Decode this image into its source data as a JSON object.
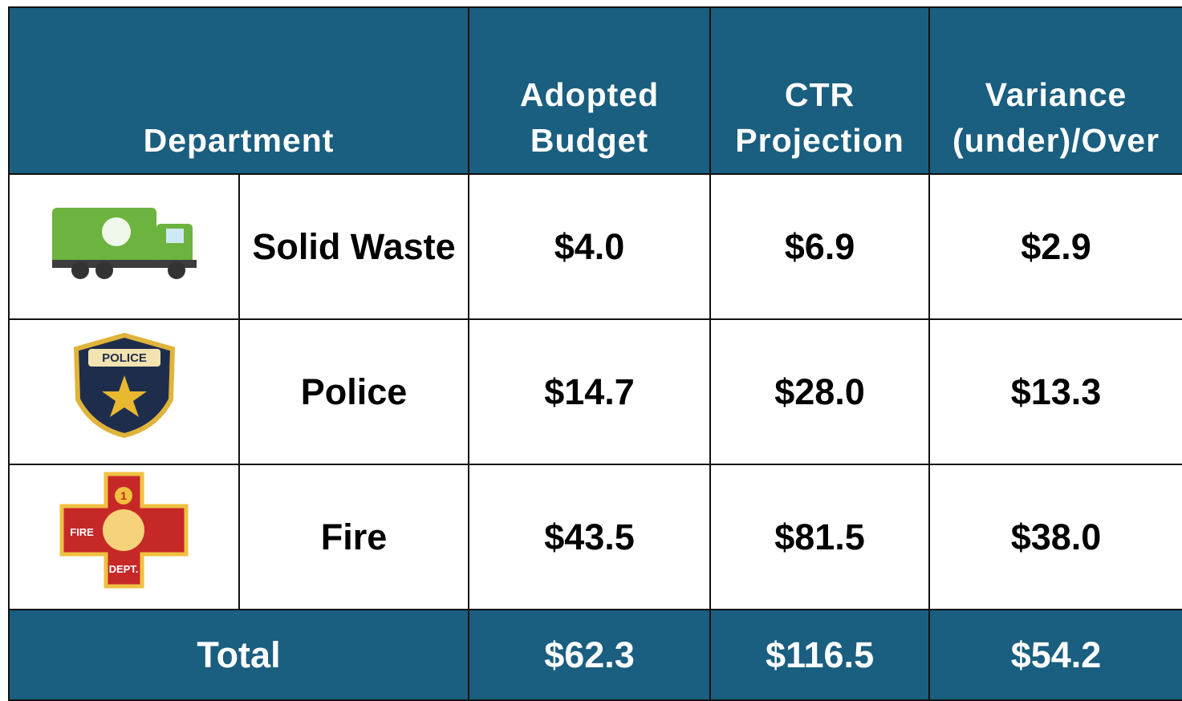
{
  "table": {
    "header": [
      "Department",
      "Adopted Budget",
      "CTR Projection",
      "Variance (under)/Over"
    ],
    "rows": [
      {
        "icon_text": [],
        "department": "Solid Waste",
        "adopted": "$4.0",
        "projection": "$6.9",
        "variance": "$2.9"
      },
      {
        "icon_text": [
          "POLICE"
        ],
        "department": "Police",
        "adopted": "$14.7",
        "projection": "$28.0",
        "variance": "$13.3"
      },
      {
        "icon_text": [
          "1",
          "FIRE",
          "DEPT."
        ],
        "department": "Fire",
        "adopted": "$43.5",
        "projection": "$81.5",
        "variance": "$38.0"
      }
    ],
    "total": [
      "Total",
      "$62.3",
      "$116.5",
      "$54.2"
    ]
  }
}
